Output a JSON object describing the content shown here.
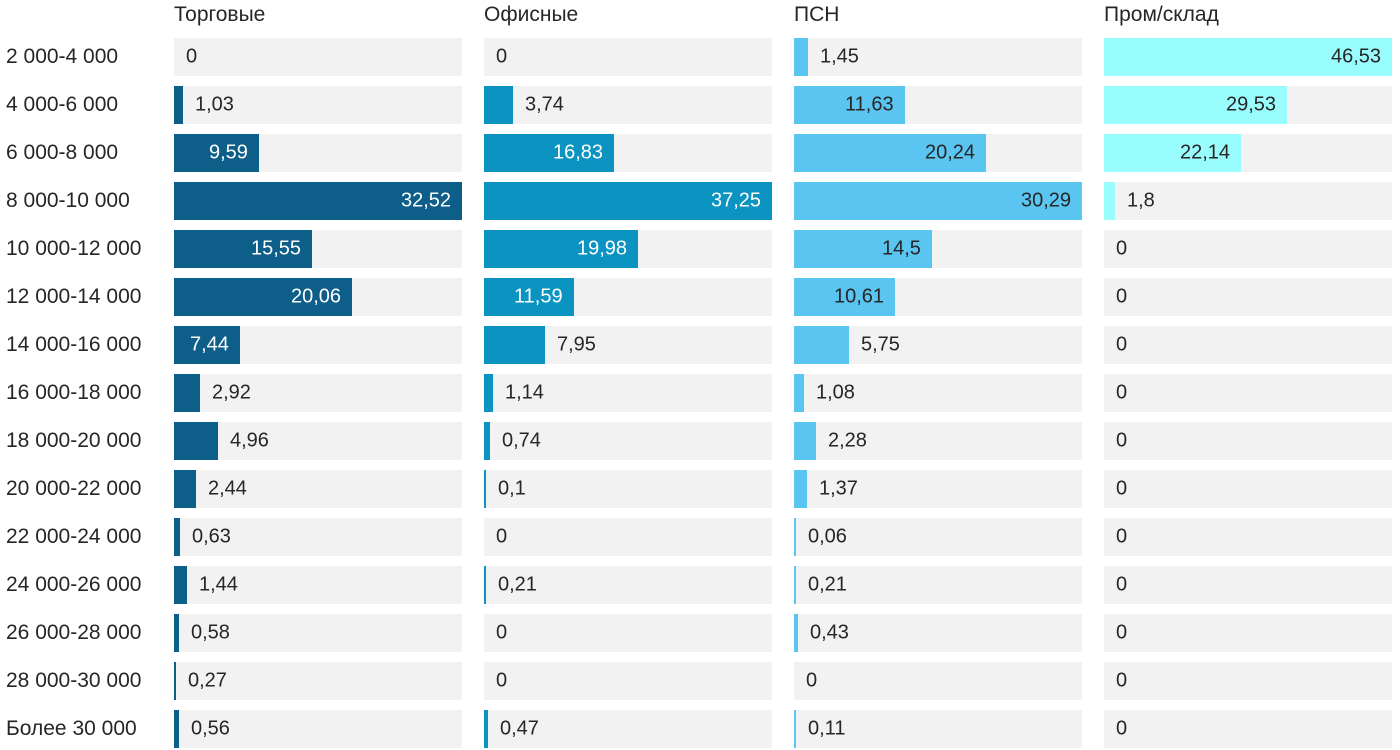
{
  "chart_data": {
    "type": "bar",
    "orientation": "horizontal",
    "title": "",
    "xlabel": "",
    "ylabel": "",
    "categories": [
      "2 000-4 000",
      "4 000-6 000",
      "6 000-8 000",
      "8 000-10 000",
      "10 000-12 000",
      "12 000-14 000",
      "14 000-16 000",
      "16 000-18 000",
      "18 000-20 000",
      "20 000-22 000",
      "22 000-24 000",
      "24 000-26 000",
      "26 000-28 000",
      "28 000-30 000",
      "Более 30 000"
    ],
    "series": [
      {
        "name": "Торговые",
        "color": "#0e5e8a",
        "inside_label_color": "#ffffff",
        "values": [
          0,
          1.03,
          9.59,
          32.52,
          15.55,
          20.06,
          7.44,
          2.92,
          4.96,
          2.44,
          0.63,
          1.44,
          0.58,
          0.27,
          0.56
        ],
        "labels": [
          "0",
          "1,03",
          "9,59",
          "32,52",
          "15,55",
          "20,06",
          "7,44",
          "2,92",
          "4,96",
          "2,44",
          "0,63",
          "1,44",
          "0,58",
          "0,27",
          "0,56"
        ]
      },
      {
        "name": "Офисные",
        "color": "#0b93c1",
        "inside_label_color": "#ffffff",
        "values": [
          0,
          3.74,
          16.83,
          37.25,
          19.98,
          11.59,
          7.95,
          1.14,
          0.74,
          0.1,
          0,
          0.21,
          0,
          0,
          0.47
        ],
        "labels": [
          "0",
          "3,74",
          "16,83",
          "37,25",
          "19,98",
          "11,59",
          "7,95",
          "1,14",
          "0,74",
          "0,1",
          "0",
          "0,21",
          "0",
          "0",
          "0,47"
        ]
      },
      {
        "name": "ПСН",
        "color": "#5bc5f1",
        "inside_label_color": "#262626",
        "values": [
          1.45,
          11.63,
          20.24,
          30.29,
          14.5,
          10.61,
          5.75,
          1.08,
          2.28,
          1.37,
          0.06,
          0.21,
          0.43,
          0,
          0.11
        ],
        "labels": [
          "1,45",
          "11,63",
          "20,24",
          "30,29",
          "14,5",
          "10,61",
          "5,75",
          "1,08",
          "2,28",
          "1,37",
          "0,06",
          "0,21",
          "0,43",
          "0",
          "0,11"
        ]
      },
      {
        "name": "Пром/склад",
        "color": "#9afdfd",
        "inside_label_color": "#262626",
        "values": [
          46.53,
          29.53,
          22.14,
          1.8,
          0,
          0,
          0,
          0,
          0,
          0,
          0,
          0,
          0,
          0,
          0
        ],
        "labels": [
          "46,53",
          "29,53",
          "22,14",
          "1,8",
          "0",
          "0",
          "0",
          "0",
          "0",
          "0",
          "0",
          "0",
          "0",
          "0",
          "0"
        ]
      }
    ],
    "layout": {
      "scaling": "each column scaled independently, column max fills full track width",
      "track_color": "#f2f2f2",
      "outside_label_color": "#262626",
      "grid": false,
      "legend_position": "column headers above each bar column",
      "value_label_rule": "label inside bar right-aligned when it fits, otherwise outside right of bar"
    }
  }
}
